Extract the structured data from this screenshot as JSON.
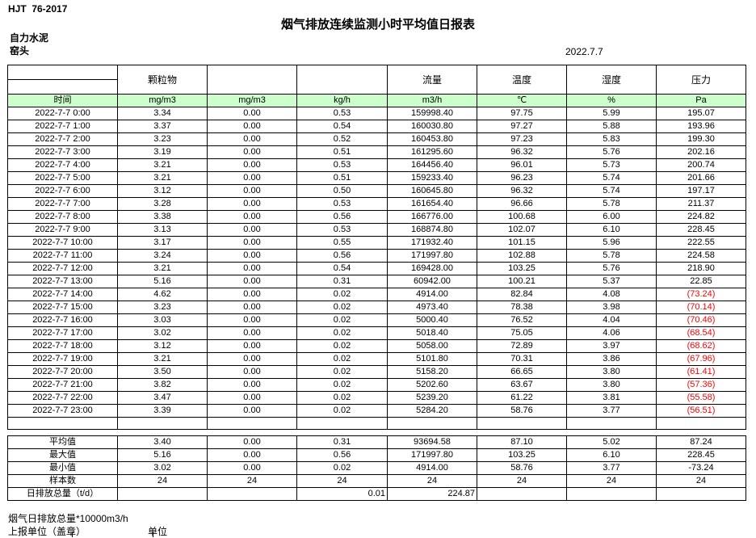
{
  "header": {
    "doc_code": "HJT  76-2017",
    "title": "烟气排放连续监测小时平均值日报表",
    "company": "自力水泥",
    "station": "窑头",
    "date": "2022.7.7"
  },
  "table": {
    "group_headers": [
      "",
      "颗粒物",
      "",
      "",
      "流量",
      "温度",
      "湿度",
      "压力"
    ],
    "unit_row": [
      "时间",
      "mg/m3",
      "mg/m3",
      "kg/h",
      "m3/h",
      "℃",
      "%",
      "Pa"
    ],
    "rows": [
      [
        "2022-7-7 0:00",
        "3.34",
        "0.00",
        "0.53",
        "159998.40",
        "97.75",
        "5.99",
        "195.07"
      ],
      [
        "2022-7-7 1:00",
        "3.37",
        "0.00",
        "0.54",
        "160030.80",
        "97.27",
        "5.88",
        "193.96"
      ],
      [
        "2022-7-7 2:00",
        "3.23",
        "0.00",
        "0.52",
        "160453.80",
        "97.23",
        "5.83",
        "199.30"
      ],
      [
        "2022-7-7 3:00",
        "3.19",
        "0.00",
        "0.51",
        "161295.60",
        "96.32",
        "5.76",
        "202.16"
      ],
      [
        "2022-7-7 4:00",
        "3.21",
        "0.00",
        "0.53",
        "164456.40",
        "96.01",
        "5.73",
        "200.74"
      ],
      [
        "2022-7-7 5:00",
        "3.21",
        "0.00",
        "0.51",
        "159233.40",
        "96.23",
        "5.74",
        "201.66"
      ],
      [
        "2022-7-7 6:00",
        "3.12",
        "0.00",
        "0.50",
        "160645.80",
        "96.32",
        "5.74",
        "197.17"
      ],
      [
        "2022-7-7 7:00",
        "3.28",
        "0.00",
        "0.53",
        "161654.40",
        "96.66",
        "5.78",
        "211.37"
      ],
      [
        "2022-7-7 8:00",
        "3.38",
        "0.00",
        "0.56",
        "166776.00",
        "100.68",
        "6.00",
        "224.82"
      ],
      [
        "2022-7-7 9:00",
        "3.13",
        "0.00",
        "0.53",
        "168874.80",
        "102.07",
        "6.10",
        "228.45"
      ],
      [
        "2022-7-7 10:00",
        "3.17",
        "0.00",
        "0.55",
        "171932.40",
        "101.15",
        "5.96",
        "222.55"
      ],
      [
        "2022-7-7 11:00",
        "3.24",
        "0.00",
        "0.56",
        "171997.80",
        "102.88",
        "5.78",
        "224.58"
      ],
      [
        "2022-7-7 12:00",
        "3.21",
        "0.00",
        "0.54",
        "169428.00",
        "103.25",
        "5.76",
        "218.90"
      ],
      [
        "2022-7-7 13:00",
        "5.16",
        "0.00",
        "0.31",
        "60942.00",
        "100.21",
        "5.37",
        "22.85"
      ],
      [
        "2022-7-7 14:00",
        "4.62",
        "0.00",
        "0.02",
        "4914.00",
        "82.84",
        "4.08",
        "(73.24)"
      ],
      [
        "2022-7-7 15:00",
        "3.23",
        "0.00",
        "0.02",
        "4973.40",
        "78.38",
        "3.98",
        "(70.14)"
      ],
      [
        "2022-7-7 16:00",
        "3.03",
        "0.00",
        "0.02",
        "5000.40",
        "76.52",
        "4.04",
        "(70.46)"
      ],
      [
        "2022-7-7 17:00",
        "3.02",
        "0.00",
        "0.02",
        "5018.40",
        "75.05",
        "4.06",
        "(68.54)"
      ],
      [
        "2022-7-7 18:00",
        "3.12",
        "0.00",
        "0.02",
        "5058.00",
        "72.89",
        "3.97",
        "(68.62)"
      ],
      [
        "2022-7-7 19:00",
        "3.21",
        "0.00",
        "0.02",
        "5101.80",
        "70.31",
        "3.86",
        "(67.96)"
      ],
      [
        "2022-7-7 20:00",
        "3.50",
        "0.00",
        "0.02",
        "5158.20",
        "66.65",
        "3.80",
        "(61.41)"
      ],
      [
        "2022-7-7 21:00",
        "3.82",
        "0.00",
        "0.02",
        "5202.60",
        "63.67",
        "3.80",
        "(57.36)"
      ],
      [
        "2022-7-7 22:00",
        "3.47",
        "0.00",
        "0.02",
        "5239.20",
        "61.22",
        "3.81",
        "(55.58)"
      ],
      [
        "2022-7-7 23:00",
        "3.39",
        "0.00",
        "0.02",
        "5284.20",
        "58.76",
        "3.77",
        "(56.51)"
      ]
    ],
    "summary": [
      [
        "平均值",
        "3.40",
        "0.00",
        "0.31",
        "93694.58",
        "87.10",
        "5.02",
        "87.24"
      ],
      [
        "最大值",
        "5.16",
        "0.00",
        "0.56",
        "171997.80",
        "103.25",
        "6.10",
        "228.45"
      ],
      [
        "最小值",
        "3.02",
        "0.00",
        "0.02",
        "4914.00",
        "58.76",
        "3.77",
        "-73.24"
      ],
      [
        "样本数",
        "24",
        "24",
        "24",
        "24",
        "24",
        "24",
        "24"
      ],
      [
        "日排放总量（t/d）",
        "",
        "",
        "0.01",
        "224.87",
        "",
        "",
        ""
      ]
    ]
  },
  "footer": {
    "note1": "烟气日排放总量*10000m3/h",
    "note2": "上报单位（盖章）",
    "note3": "单位"
  },
  "colors": {
    "header_green": "#ccffcc",
    "negative_red": "#ff0000"
  }
}
